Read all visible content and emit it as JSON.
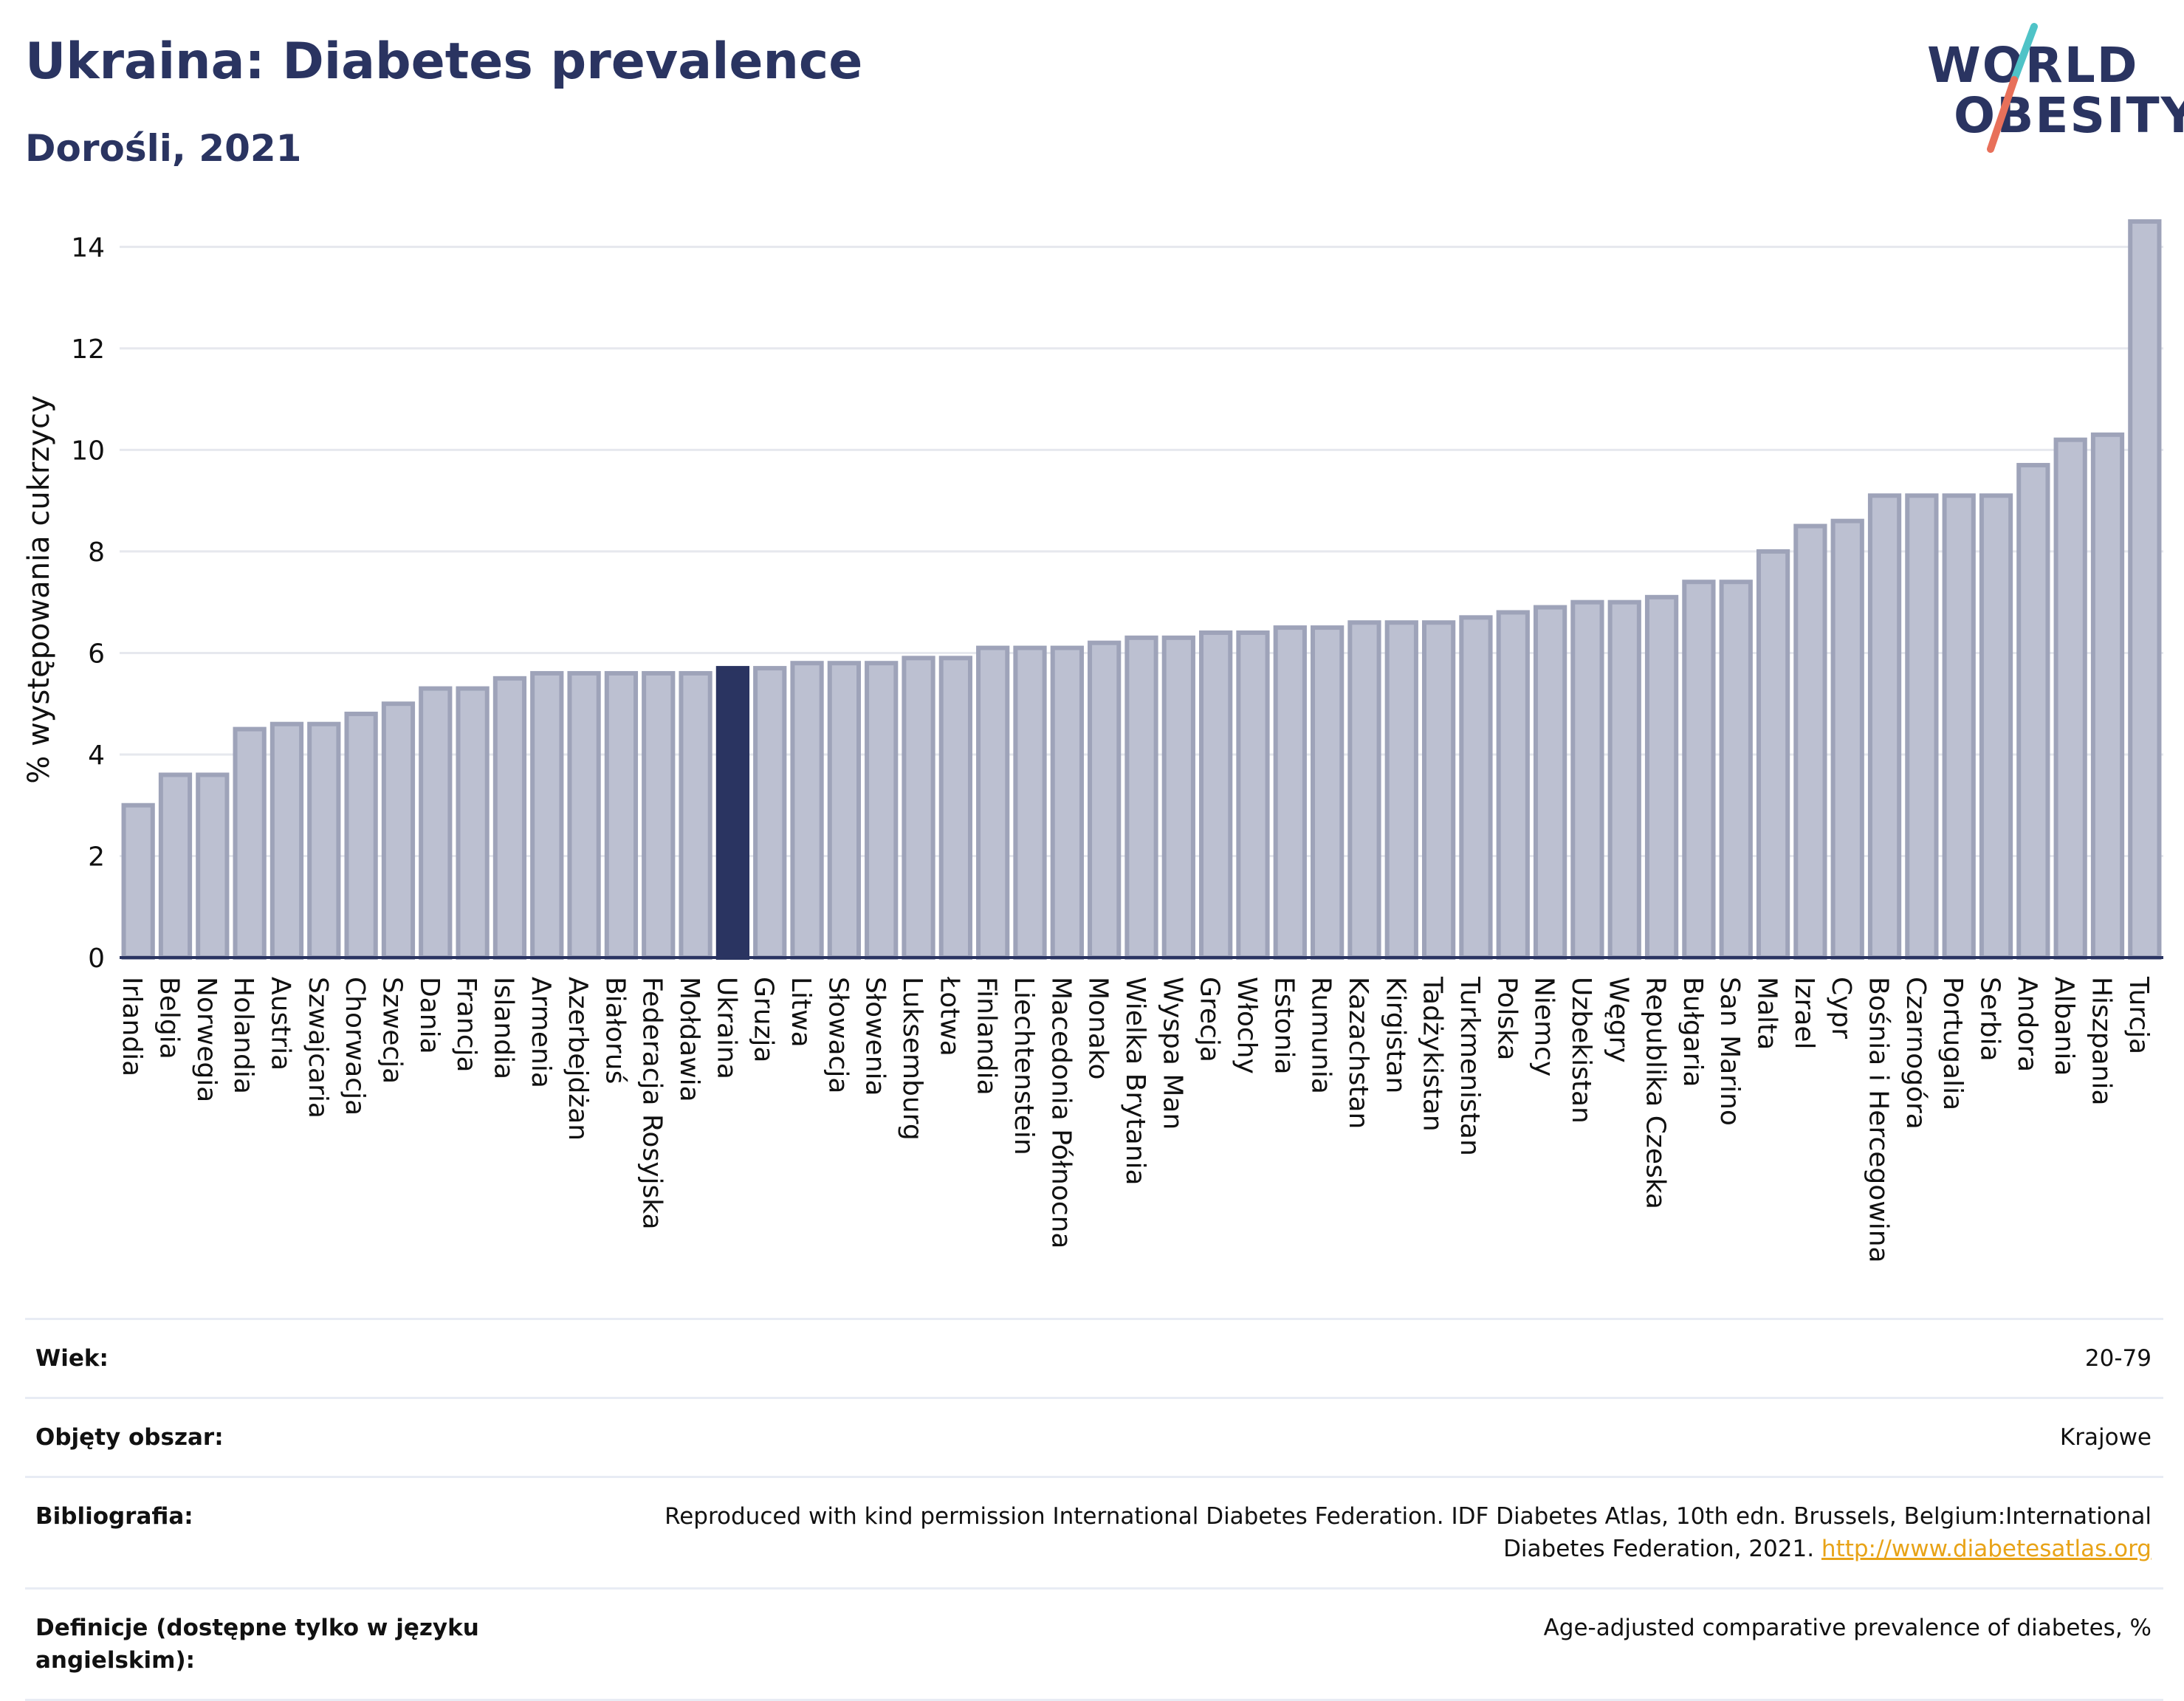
{
  "header": {
    "title": "Ukraina: Diabetes prevalence",
    "subtitle": "Dorośli, 2021"
  },
  "logo": {
    "line1": "WORLD",
    "line2": "OBESITY",
    "accent_colors": [
      "#4fc3c7",
      "#e8705a"
    ]
  },
  "colors": {
    "bar": "#bcc0d1",
    "bar_border": "#9ea3b9",
    "highlight": "#2a3461",
    "grid": "#e6e8ee",
    "axis": "#2a3461",
    "title": "#2a3461",
    "link": "#e8a317"
  },
  "chart_data": {
    "type": "bar",
    "title": "Ukraina: Diabetes prevalence",
    "subtitle": "Dorośli, 2021",
    "ylabel": "% występowania cukrzycy",
    "xlabel": "",
    "ylim": [
      0,
      14.5
    ],
    "yticks": [
      0,
      2,
      4,
      6,
      8,
      10,
      12,
      14
    ],
    "grid": true,
    "highlight": "Ukraina",
    "categories": [
      "Irlandia",
      "Belgia",
      "Norwegia",
      "Holandia",
      "Austria",
      "Szwajcaria",
      "Chorwacja",
      "Szwecja",
      "Dania",
      "Francja",
      "Islandia",
      "Armenia",
      "Azerbejdżan",
      "Białoruś",
      "Federacja Rosyjska",
      "Mołdawia",
      "Ukraina",
      "Gruzja",
      "Litwa",
      "Słowacja",
      "Słowenia",
      "Luksemburg",
      "Łotwa",
      "Finlandia",
      "Liechtenstein",
      "Macedonia Północna",
      "Monako",
      "Wielka Brytania",
      "Wyspa Man",
      "Grecja",
      "Włochy",
      "Estonia",
      "Rumunia",
      "Kazachstan",
      "Kirgistan",
      "Tadżykistan",
      "Turkmenistan",
      "Polska",
      "Niemcy",
      "Uzbekistan",
      "Węgry",
      "Republika Czeska",
      "Bułgaria",
      "San Marino",
      "Malta",
      "Izrael",
      "Cypr",
      "Bośnia i Hercegowina",
      "Czarnogóra",
      "Portugalia",
      "Serbia",
      "Andora",
      "Albania",
      "Hiszpania",
      "Turcja"
    ],
    "values": [
      3.0,
      3.6,
      3.6,
      4.5,
      4.6,
      4.6,
      4.8,
      5.0,
      5.3,
      5.3,
      5.5,
      5.6,
      5.6,
      5.6,
      5.6,
      5.6,
      5.7,
      5.7,
      5.8,
      5.8,
      5.8,
      5.9,
      5.9,
      6.1,
      6.1,
      6.1,
      6.2,
      6.3,
      6.3,
      6.4,
      6.4,
      6.5,
      6.5,
      6.6,
      6.6,
      6.6,
      6.7,
      6.8,
      6.9,
      7.0,
      7.0,
      7.1,
      7.4,
      7.4,
      8.0,
      8.5,
      8.6,
      9.1,
      9.1,
      9.1,
      9.1,
      9.7,
      10.2,
      10.3,
      14.5
    ]
  },
  "info": [
    {
      "label": "Wiek:",
      "value": "20-79"
    },
    {
      "label": "Objęty obszar:",
      "value": "Krajowe"
    },
    {
      "label": "Bibliografia:",
      "value": "Reproduced with kind permission International Diabetes Federation.  IDF Diabetes Atlas, 10th edn. Brussels, Belgium:International Diabetes Federation, 2021. ",
      "link": "http://www.diabetesatlas.org"
    },
    {
      "label": "Definicje (dostępne tylko w języku angielskim):",
      "value": "Age-adjusted comparative prevalence of diabetes, %"
    }
  ]
}
